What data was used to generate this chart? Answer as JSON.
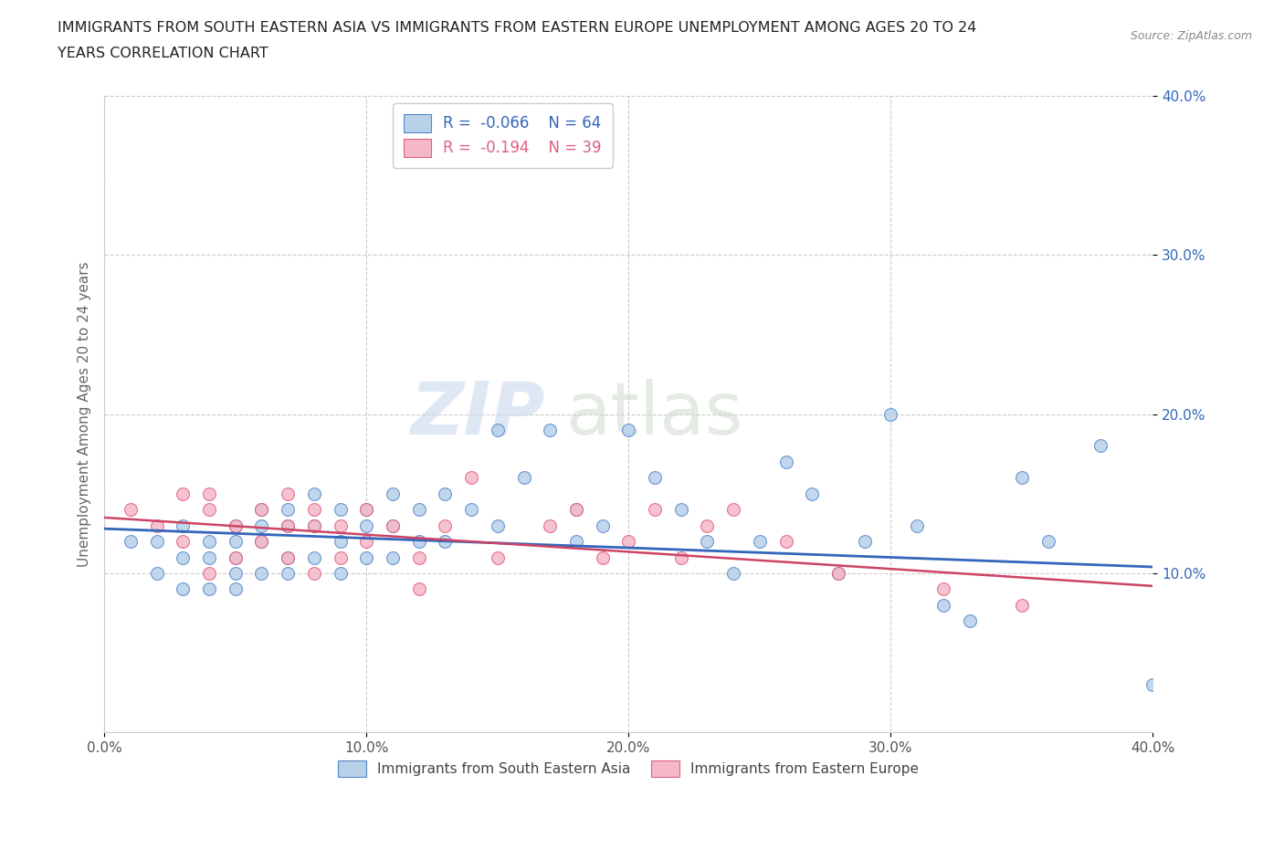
{
  "title_line1": "IMMIGRANTS FROM SOUTH EASTERN ASIA VS IMMIGRANTS FROM EASTERN EUROPE UNEMPLOYMENT AMONG AGES 20 TO 24",
  "title_line2": "YEARS CORRELATION CHART",
  "source_text": "Source: ZipAtlas.com",
  "ylabel": "Unemployment Among Ages 20 to 24 years",
  "watermark_zip": "ZIP",
  "watermark_atlas": "atlas",
  "r_blue": -0.066,
  "n_blue": 64,
  "r_pink": -0.194,
  "n_pink": 39,
  "xlim": [
    0.0,
    0.4
  ],
  "ylim": [
    0.0,
    0.4
  ],
  "xticks": [
    0.0,
    0.1,
    0.2,
    0.3,
    0.4
  ],
  "yticks": [
    0.1,
    0.2,
    0.3,
    0.4
  ],
  "blue_scatter_x": [
    0.01,
    0.02,
    0.02,
    0.03,
    0.03,
    0.03,
    0.04,
    0.04,
    0.04,
    0.05,
    0.05,
    0.05,
    0.05,
    0.05,
    0.06,
    0.06,
    0.06,
    0.06,
    0.07,
    0.07,
    0.07,
    0.07,
    0.08,
    0.08,
    0.08,
    0.09,
    0.09,
    0.09,
    0.1,
    0.1,
    0.1,
    0.11,
    0.11,
    0.11,
    0.12,
    0.12,
    0.13,
    0.13,
    0.14,
    0.15,
    0.15,
    0.16,
    0.17,
    0.18,
    0.18,
    0.19,
    0.2,
    0.21,
    0.22,
    0.23,
    0.24,
    0.25,
    0.26,
    0.27,
    0.28,
    0.29,
    0.3,
    0.31,
    0.32,
    0.33,
    0.35,
    0.36,
    0.38,
    0.4
  ],
  "blue_scatter_y": [
    0.12,
    0.12,
    0.1,
    0.13,
    0.11,
    0.09,
    0.12,
    0.11,
    0.09,
    0.13,
    0.12,
    0.11,
    0.1,
    0.09,
    0.14,
    0.13,
    0.12,
    0.1,
    0.14,
    0.13,
    0.11,
    0.1,
    0.15,
    0.13,
    0.11,
    0.14,
    0.12,
    0.1,
    0.14,
    0.13,
    0.11,
    0.15,
    0.13,
    0.11,
    0.14,
    0.12,
    0.15,
    0.12,
    0.14,
    0.19,
    0.13,
    0.16,
    0.19,
    0.14,
    0.12,
    0.13,
    0.19,
    0.16,
    0.14,
    0.12,
    0.1,
    0.12,
    0.17,
    0.15,
    0.1,
    0.12,
    0.2,
    0.13,
    0.08,
    0.07,
    0.16,
    0.12,
    0.18,
    0.03
  ],
  "pink_scatter_x": [
    0.01,
    0.02,
    0.03,
    0.03,
    0.04,
    0.04,
    0.04,
    0.05,
    0.05,
    0.06,
    0.06,
    0.07,
    0.07,
    0.07,
    0.08,
    0.08,
    0.08,
    0.09,
    0.09,
    0.1,
    0.1,
    0.11,
    0.12,
    0.12,
    0.13,
    0.14,
    0.15,
    0.17,
    0.18,
    0.19,
    0.2,
    0.21,
    0.22,
    0.23,
    0.24,
    0.26,
    0.28,
    0.32,
    0.35
  ],
  "pink_scatter_y": [
    0.14,
    0.13,
    0.15,
    0.12,
    0.15,
    0.14,
    0.1,
    0.13,
    0.11,
    0.14,
    0.12,
    0.15,
    0.13,
    0.11,
    0.14,
    0.13,
    0.1,
    0.13,
    0.11,
    0.14,
    0.12,
    0.13,
    0.11,
    0.09,
    0.13,
    0.16,
    0.11,
    0.13,
    0.14,
    0.11,
    0.12,
    0.14,
    0.11,
    0.13,
    0.14,
    0.12,
    0.1,
    0.09,
    0.08
  ],
  "blue_color": "#b8d0e8",
  "pink_color": "#f5b8c8",
  "blue_edge_color": "#5588cc",
  "pink_edge_color": "#e06080",
  "blue_line_color": "#3366bb",
  "pink_line_color": "#cc4466",
  "background_color": "#ffffff",
  "grid_color": "#cccccc",
  "title_color": "#222222",
  "source_color": "#888888",
  "ytick_color": "#3366bb",
  "xtick_color": "#555555"
}
